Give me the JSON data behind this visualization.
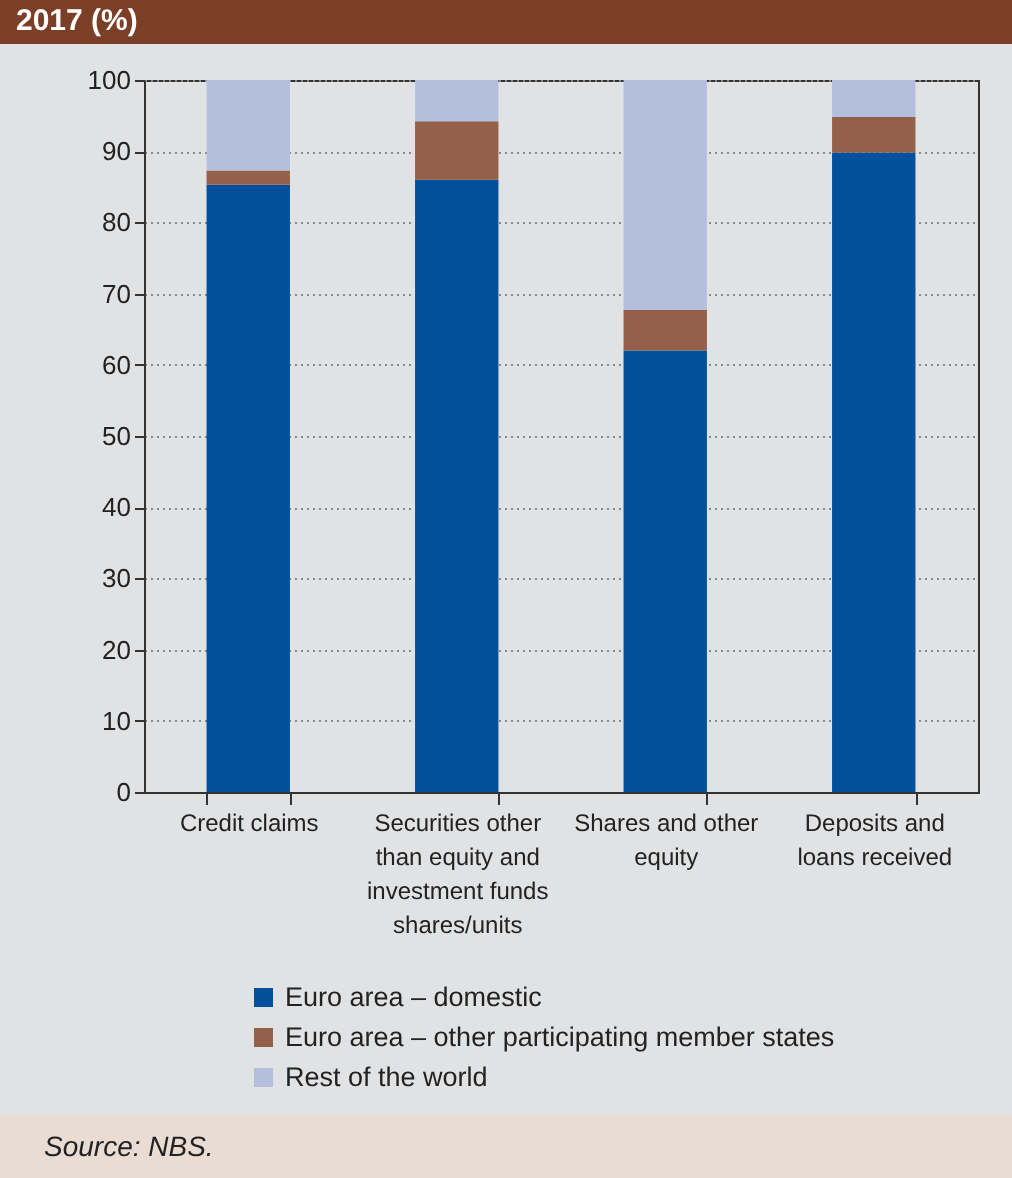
{
  "chart_data": {
    "type": "bar",
    "title": "2017 (%)",
    "stacked": true,
    "categories": [
      "Credit claims",
      "Securities other than equity and investment funds shares/units",
      "Shares and other equity",
      "Deposits and loans received"
    ],
    "series": [
      {
        "name": "Euro area – domestic",
        "color": "#00509b",
        "values": [
          85.3,
          86.0,
          62.0,
          89.8
        ]
      },
      {
        "name": "Euro area – other participating member states",
        "color": "#94604a",
        "values": [
          2.0,
          8.2,
          5.7,
          5.0
        ]
      },
      {
        "name": "Rest of the world",
        "color": "#b4bfdd",
        "values": [
          12.7,
          5.8,
          32.3,
          5.2
        ]
      }
    ],
    "ylim": [
      0,
      100
    ],
    "yticks": [
      0,
      10,
      20,
      30,
      40,
      50,
      60,
      70,
      80,
      90,
      100
    ],
    "grid": "y",
    "legend": "bottom",
    "annotations": [
      "Source: NBS."
    ]
  }
}
